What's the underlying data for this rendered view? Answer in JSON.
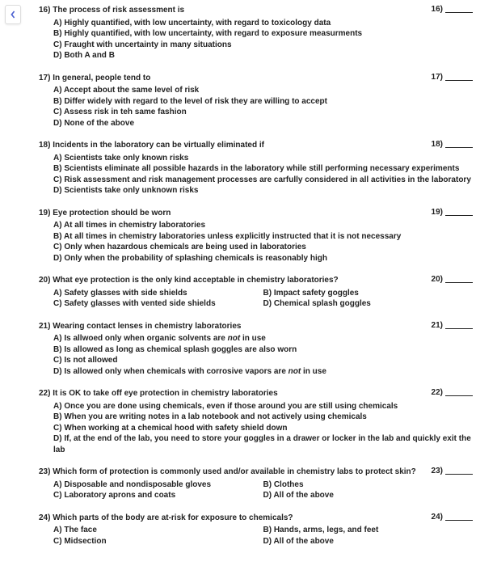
{
  "back_label": "Back",
  "questions": [
    {
      "num": "16)",
      "stem": "The process of risk assessment is",
      "options": [
        "A) Highly quantified, with low uncertainty, with regard to toxicology data",
        "B) Highly quantified, with low uncertainty, with regard to exposure measurments",
        "C) Fraught with uncertainty in many situations",
        "D) Both A and B"
      ],
      "ans_num": "16)"
    },
    {
      "num": "17)",
      "stem": "In general, people tend to",
      "options": [
        "A) Accept about the same level of risk",
        "B) Differ widely with regard to the level of risk they are willing to accept",
        "C) Assess risk in teh same fashion",
        "D) None of the above"
      ],
      "ans_num": "17)"
    },
    {
      "num": "18)",
      "stem": "Incidents in the laboratory can be virtually eliminated if",
      "options": [
        "A) Scientists take only known risks",
        "B) Scientists eliminate all possible hazards in the laboratory while still performing necessary experiments",
        "C) Risk assessment and risk management processes are carfully considered in all activities in the laboratory",
        "D) Scientists take only unknown risks"
      ],
      "ans_num": "18)"
    },
    {
      "num": "19)",
      "stem": "Eye protection should be worn",
      "options": [
        "A) At all times in chemistry laboratories",
        "B) At all times in chemistry laboratories unless explicitly instructed that it is not necessary",
        "C) Only when hazardous chemicals are being used in laboratories",
        "D) Only when the probability of splashing chemicals is reasonably high"
      ],
      "ans_num": "19)"
    },
    {
      "num": "20)",
      "stem": "What eye protection is the only kind acceptable in chemistry laboratories?",
      "two_col": true,
      "options_left": [
        "A) Safety glasses with side shields",
        "C) Safety glasses with vented side shields"
      ],
      "options_right": [
        "B) Impact safety goggles",
        "D) Chemical splash goggles"
      ],
      "ans_num": "20)"
    },
    {
      "num": "21)",
      "stem": "Wearing contact lenses in chemistry laboratories",
      "options_html": [
        "A) Is allwoed only when organic solvents are <em>not</em> in use",
        "B) Is allowed as long as chemical splash goggles are also worn",
        "C) Is not allowed",
        "D) Is allowed only when chemicals with corrosive vapors are <em>not</em> in use"
      ],
      "ans_num": "21)"
    },
    {
      "num": "22)",
      "stem": "It is OK to take off eye protection in chemistry laboratories",
      "options": [
        "A) Once you are done using chemicals, even if those around you are still using chemicals",
        "B) When you are writing notes in a lab notebook and not actively using chemicals",
        "C) When working at a chemical hood with safety shield down",
        "D) If, at the end of the lab, you need to store your goggles in a drawer or locker in the lab and quickly exit the lab"
      ],
      "ans_num": "22)"
    },
    {
      "num": "23)",
      "stem": "Which form of protection is commonly used and/or available in chemistry labs to protect skin?",
      "two_col": true,
      "options_left": [
        "A) Disposable and nondisposable gloves",
        "C) Laboratory aprons and coats"
      ],
      "options_right": [
        "B) Clothes",
        "D) All of the above"
      ],
      "ans_num": "23)"
    },
    {
      "num": "24)",
      "stem": "Which parts of the body are at-risk for exposure to chemicals?",
      "two_col": true,
      "options_left": [
        "A) The face",
        "C) Midsection"
      ],
      "options_right": [
        "B) Hands, arms, legs, and feet",
        "D) All of the above"
      ],
      "ans_num": "24)"
    }
  ]
}
